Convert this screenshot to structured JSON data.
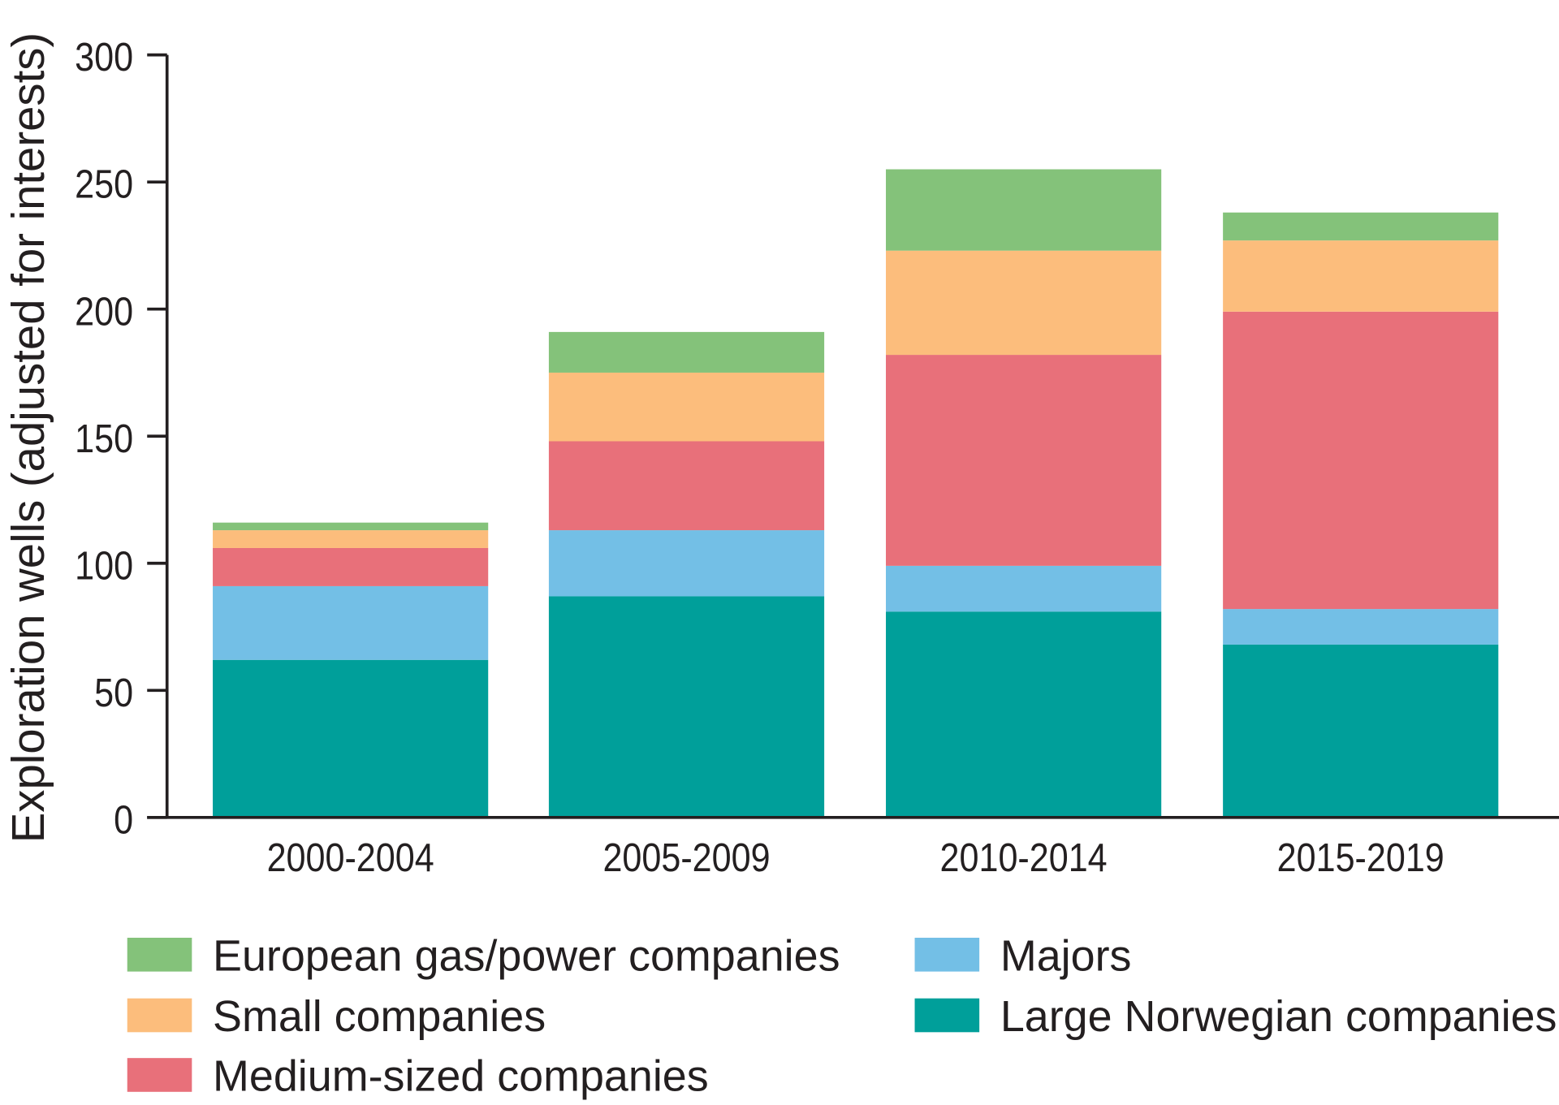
{
  "chart_data": {
    "type": "bar",
    "stacked": true,
    "title": "",
    "xlabel": "",
    "ylabel": "Exploration wells (adjusted for interests)",
    "ylim": [
      0,
      300
    ],
    "yticks": [
      0,
      50,
      100,
      150,
      200,
      250,
      300
    ],
    "grid": false,
    "legend_placement": "bottom",
    "categories": [
      "2000-2004",
      "2005-2009",
      "2010-2014",
      "2015-2019"
    ],
    "series": [
      {
        "name": "Large Norwegian companies",
        "color": "#009f9a",
        "values": [
          62,
          87,
          81,
          68
        ]
      },
      {
        "name": "Majors",
        "color": "#73bfe6",
        "values": [
          29,
          26,
          18,
          14
        ]
      },
      {
        "name": "Medium-sized companies",
        "color": "#e8707a",
        "values": [
          15,
          35,
          83,
          117
        ]
      },
      {
        "name": "Small companies",
        "color": "#fcbd7c",
        "values": [
          7,
          27,
          41,
          28
        ]
      },
      {
        "name": "European gas/power companies",
        "color": "#84c27a",
        "values": [
          3,
          16,
          32,
          11
        ]
      }
    ],
    "legend_order": [
      "European gas/power companies",
      "Small companies",
      "Medium-sized companies",
      "Majors",
      "Large Norwegian companies"
    ]
  }
}
